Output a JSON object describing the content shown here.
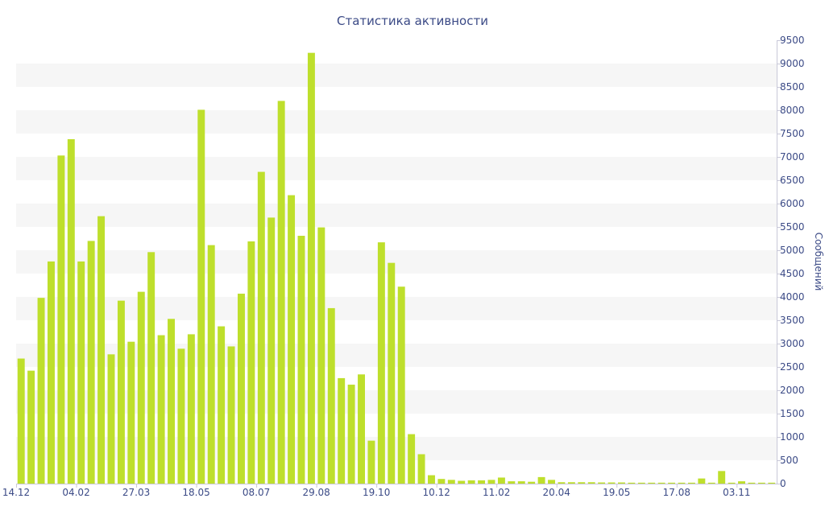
{
  "colors": {
    "bar": "#bedf2c",
    "band": "#f6f6f6",
    "text": "#3b4a86",
    "axis": "#c8c8d8"
  },
  "chart_data": {
    "type": "bar",
    "title": "Статистика активности",
    "ylabel": "Сообщений",
    "xlabel": "",
    "ylim": [
      0,
      9500
    ],
    "y_ticks": [
      0,
      500,
      1000,
      1500,
      2000,
      2500,
      3000,
      3500,
      4000,
      4500,
      5000,
      5500,
      6000,
      6500,
      7000,
      7500,
      8000,
      8500,
      9000,
      9500
    ],
    "y_axis_side": "right",
    "grid": "alternating horizontal bands",
    "x_tick_labels": [
      {
        "label": "14.12",
        "index": 0
      },
      {
        "label": "04.02",
        "index": 6
      },
      {
        "label": "27.03",
        "index": 12
      },
      {
        "label": "18.05",
        "index": 18
      },
      {
        "label": "08.07",
        "index": 24
      },
      {
        "label": "29.08",
        "index": 30
      },
      {
        "label": "19.10",
        "index": 36
      },
      {
        "label": "10.12",
        "index": 42
      },
      {
        "label": "11.02",
        "index": 48
      },
      {
        "label": "20.04",
        "index": 54
      },
      {
        "label": "19.05",
        "index": 60
      },
      {
        "label": "17.08",
        "index": 66
      },
      {
        "label": "03.11",
        "index": 72
      }
    ],
    "values": [
      2680,
      2420,
      3980,
      4760,
      7030,
      7380,
      4760,
      5200,
      5730,
      2770,
      3920,
      3040,
      4110,
      4960,
      3180,
      3530,
      2890,
      3200,
      8010,
      5110,
      3370,
      2940,
      4070,
      5190,
      6680,
      5700,
      8200,
      6180,
      5310,
      9230,
      5490,
      3760,
      2260,
      2120,
      2340,
      920,
      5170,
      4730,
      4220,
      1060,
      630,
      180,
      100,
      80,
      60,
      70,
      70,
      80,
      130,
      50,
      50,
      40,
      140,
      80,
      30,
      30,
      30,
      30,
      25,
      25,
      25,
      20,
      20,
      20,
      20,
      20,
      20,
      20,
      110,
      20,
      270,
      20,
      50,
      20,
      20,
      20
    ]
  }
}
